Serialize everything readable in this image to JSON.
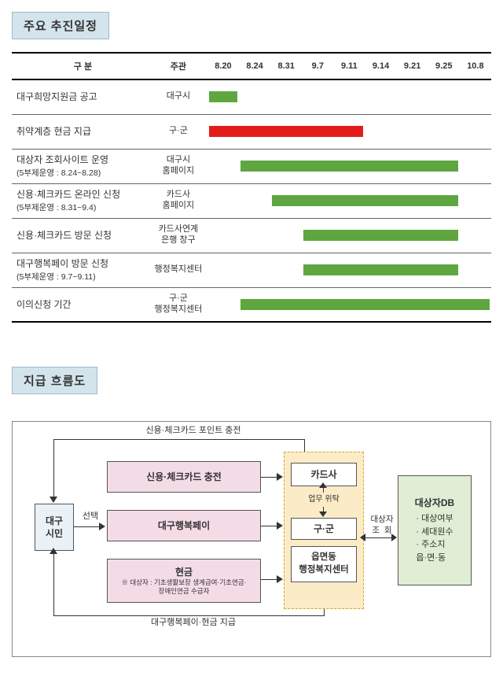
{
  "header_schedule": "주요 추진일정",
  "header_flow": "지급 흐름도",
  "table": {
    "col_category": "구   분",
    "col_organizer": "주관",
    "dates": [
      "8.20",
      "8.24",
      "8.31",
      "9.7",
      "9.11",
      "9.14",
      "9.21",
      "9.25",
      "10.8"
    ],
    "rows": [
      {
        "label": "대구희망지원금 공고",
        "sub": "",
        "org": "대구시",
        "bar_start": 0,
        "bar_end": 1,
        "color": "#5fa641"
      },
      {
        "label": "취약계층 현금 지급",
        "sub": "",
        "org": "구·군",
        "bar_start": 0,
        "bar_end": 5,
        "color": "#e31b1b"
      },
      {
        "label": "대상자 조회사이트 운영",
        "sub": "(5부제운영 : 8.24~8.28)",
        "org": "대구시\n홈페이지",
        "bar_start": 1,
        "bar_end": 8,
        "color": "#5fa641"
      },
      {
        "label": "신용·체크카드 온라인 신청",
        "sub": "(5부제운영 : 8.31~9.4)",
        "org": "카드사\n홈페이지",
        "bar_start": 2,
        "bar_end": 8,
        "color": "#5fa641"
      },
      {
        "label": "신용·체크카드 방문 신청",
        "sub": "",
        "org": "카드사연계\n은행 창구",
        "bar_start": 3,
        "bar_end": 8,
        "color": "#5fa641"
      },
      {
        "label": "대구행복페이 방문 신청",
        "sub": "(5부제운영 : 9.7~9.11)",
        "org": "행정복지센터",
        "bar_start": 3,
        "bar_end": 8,
        "color": "#5fa641"
      },
      {
        "label": "이의신청 기간",
        "sub": "",
        "org": "구·군\n행정복지센터",
        "bar_start": 1,
        "bar_end": 9,
        "color": "#5fa641"
      }
    ]
  },
  "flow": {
    "citizen": "대구\n시민",
    "select_label": "선택",
    "opt_card": "신용·체크카드 충전",
    "opt_pay": "대구행복페이",
    "opt_cash_title": "현금",
    "opt_cash_note": "※ 대상자 : 기초생활보장 생계급여·기초연금·\n장애인연금 수급자",
    "card_co": "카드사",
    "gugun": "구·군",
    "emd": "읍면동\n행정복지센터",
    "work_delegate": "업무 위탁",
    "db_title": "대상자DB",
    "db_items": [
      "· 대상여부",
      "· 세대원수",
      "· 주소지\n   읍·면·동"
    ],
    "query_label": "대상자\n조  회",
    "top_label": "신용·체크카드 포인트 충전",
    "bottom_label": "대구행복페이·현금 지급",
    "colors": {
      "citizen_bg": "#eaf2f7",
      "option_bg": "#f4dce6",
      "middle_bg": "#fbecc7",
      "middle_inner_bg": "#ffffff",
      "db_bg": "#dfeed5"
    }
  }
}
